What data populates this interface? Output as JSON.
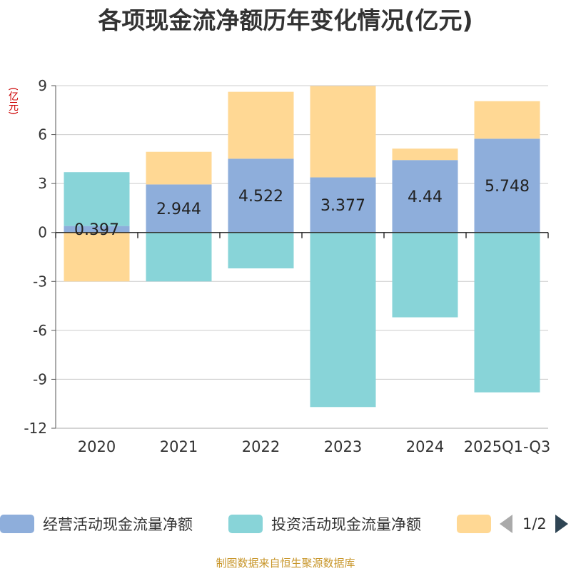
{
  "chart_data": {
    "type": "bar",
    "stacked": true,
    "title": "各项现金流净额历年变化情况(亿元)",
    "ylabel": "(亿元)",
    "ylim": [
      -12,
      9
    ],
    "yticks": [
      9,
      6,
      3,
      0,
      -3,
      -6,
      -9,
      -12
    ],
    "categories": [
      "2020",
      "2021",
      "2022",
      "2023",
      "2024",
      "2025Q1-Q3"
    ],
    "series": [
      {
        "name": "经营活动现金流量净额",
        "color": "#8eaedb",
        "values": [
          0.397,
          2.944,
          4.522,
          3.377,
          4.44,
          5.748
        ],
        "show_labels": true
      },
      {
        "name": "投资活动现金流量净额",
        "color": "#88d4d8",
        "values": [
          3.3,
          -3.0,
          -2.2,
          -10.7,
          -5.2,
          -9.8
        ],
        "show_labels": false
      },
      {
        "name": "",
        "color": "#ffd894",
        "values": [
          -3.0,
          2.0,
          4.1,
          5.6,
          0.7,
          2.3
        ],
        "show_labels": false
      }
    ],
    "legend_position": "bottom"
  },
  "legend": {
    "items": [
      "经营活动现金流量净额",
      "投资活动现金流量净额",
      ""
    ],
    "pager": "1/2"
  },
  "footer": {
    "source": "制图数据来自恒生聚源数据库"
  }
}
